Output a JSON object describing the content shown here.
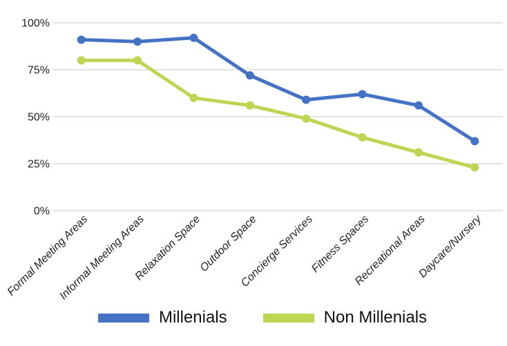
{
  "chart_data": {
    "type": "line",
    "title": "",
    "categories": [
      "Formal Meeting Areas",
      "Informal Meeting Areas",
      "Relaxation Space",
      "Outdoor Space",
      "Concierge Services",
      "Fitness Spaces",
      "Recreational Areas",
      "Daycare/Nursery"
    ],
    "series": [
      {
        "name": "Millenials",
        "color": "#4472c4",
        "values": [
          91,
          90,
          92,
          72,
          59,
          62,
          56,
          37
        ]
      },
      {
        "name": "Non Millenials",
        "color": "#bcd553",
        "values": [
          80,
          80,
          60,
          56,
          49,
          39,
          31,
          23
        ]
      }
    ],
    "y_ticks": [
      {
        "label": "100%",
        "value": 100
      },
      {
        "label": "75%",
        "value": 75
      },
      {
        "label": "50%",
        "value": 50
      },
      {
        "label": "25%",
        "value": 25
      },
      {
        "label": "0%",
        "value": 0
      }
    ],
    "ylim": [
      0,
      100
    ],
    "grid": true,
    "legend_position": "bottom",
    "x_labels_style": "italic",
    "x_labels_rotation_deg": -45
  },
  "colors": {
    "background": "#ffffff",
    "gridline": "#c9c9c9",
    "axis_text": "#1f1f1f",
    "legend_text": "#111111"
  }
}
